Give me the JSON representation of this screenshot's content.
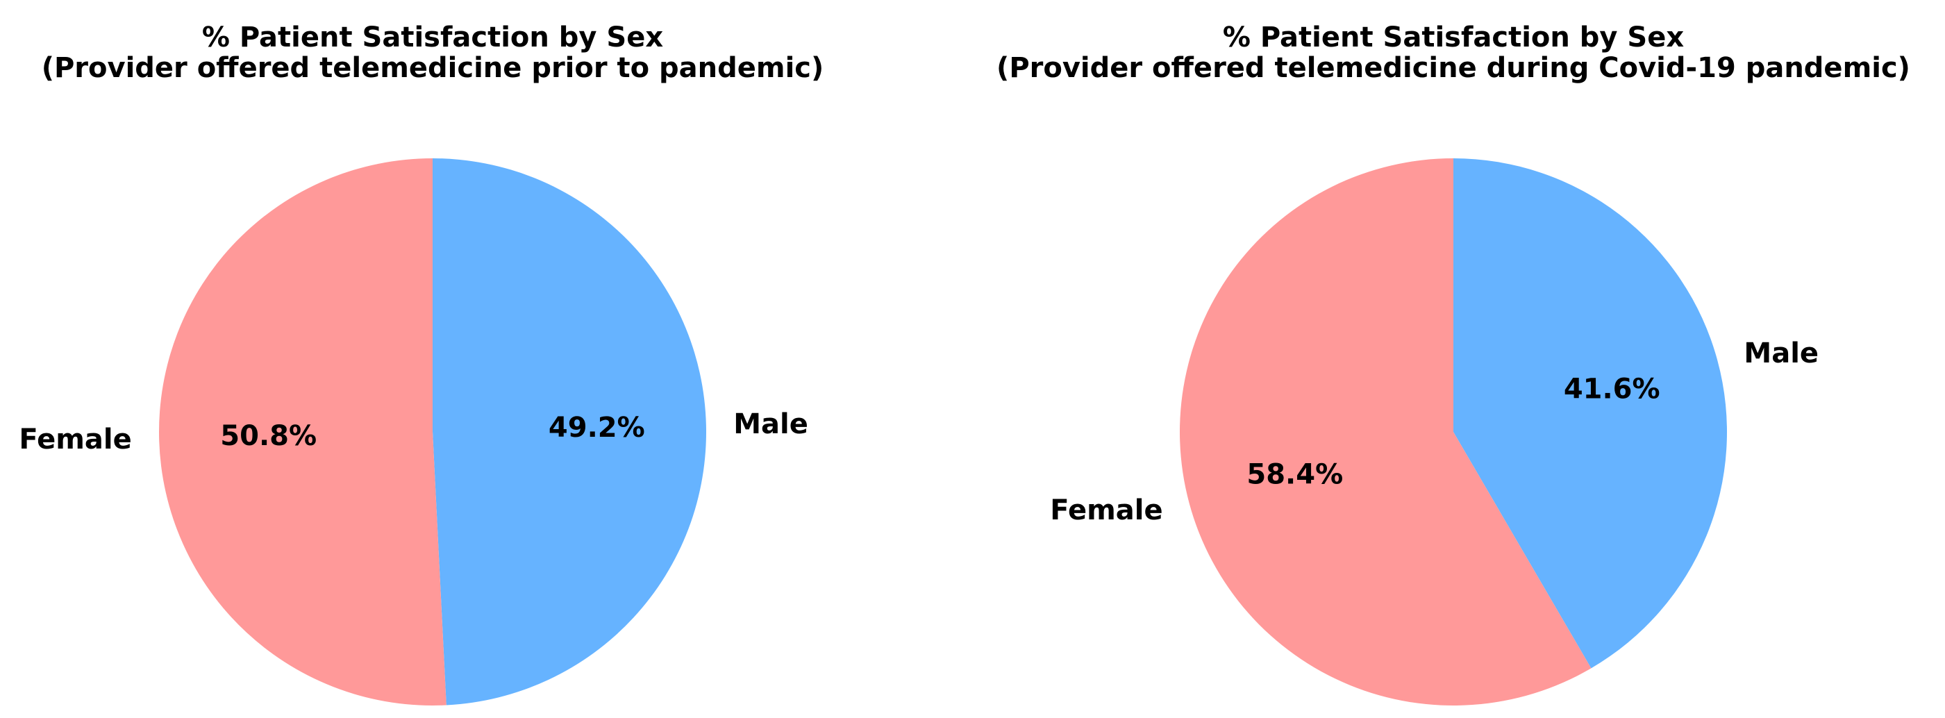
{
  "chart_data": [
    {
      "type": "pie",
      "title": "% Patient Satisfaction by Sex",
      "subtitle": "(Provider offered telemedicine prior to pandemic)",
      "start_angle_deg": 90,
      "direction": "clockwise",
      "slices": [
        {
          "label": "Male",
          "value": 49.2,
          "pct_label": "49.2%",
          "color": "#66b3ff"
        },
        {
          "label": "Female",
          "value": 50.8,
          "pct_label": "50.8%",
          "color": "#ff9999"
        }
      ]
    },
    {
      "type": "pie",
      "title": "% Patient Satisfaction by Sex",
      "subtitle": "(Provider offered telemedicine during Covid-19 pandemic)",
      "start_angle_deg": 90,
      "direction": "clockwise",
      "slices": [
        {
          "label": "Male",
          "value": 41.6,
          "pct_label": "41.6%",
          "color": "#66b3ff"
        },
        {
          "label": "Female",
          "value": 58.4,
          "pct_label": "58.4%",
          "color": "#ff9999"
        }
      ]
    }
  ]
}
